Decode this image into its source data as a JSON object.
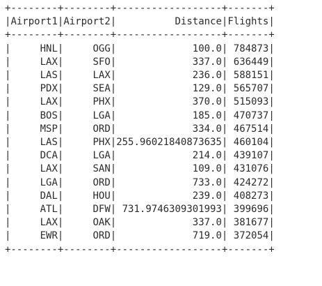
{
  "table": {
    "columns": [
      "Airport1",
      "Airport2",
      "Distance",
      "Flights"
    ],
    "rows": [
      [
        "HNL",
        "OGG",
        "100.0",
        "784873"
      ],
      [
        "LAX",
        "SFO",
        "337.0",
        "636449"
      ],
      [
        "LAS",
        "LAX",
        "236.0",
        "588151"
      ],
      [
        "PDX",
        "SEA",
        "129.0",
        "565707"
      ],
      [
        "LAX",
        "PHX",
        "370.0",
        "515093"
      ],
      [
        "BOS",
        "LGA",
        "185.0",
        "470737"
      ],
      [
        "MSP",
        "ORD",
        "334.0",
        "467514"
      ],
      [
        "LAS",
        "PHX",
        "255.96021840873635",
        "460104"
      ],
      [
        "DCA",
        "LGA",
        "214.0",
        "439107"
      ],
      [
        "LAX",
        "SAN",
        "109.0",
        "431076"
      ],
      [
        "LGA",
        "ORD",
        "733.0",
        "424272"
      ],
      [
        "DAL",
        "HOU",
        "239.0",
        "408273"
      ],
      [
        "ATL",
        "DFW",
        "731.9746309301993",
        "399696"
      ],
      [
        "LAX",
        "OAK",
        "337.0",
        "381677"
      ],
      [
        "EWR",
        "ORD",
        "719.0",
        "372054"
      ]
    ]
  }
}
